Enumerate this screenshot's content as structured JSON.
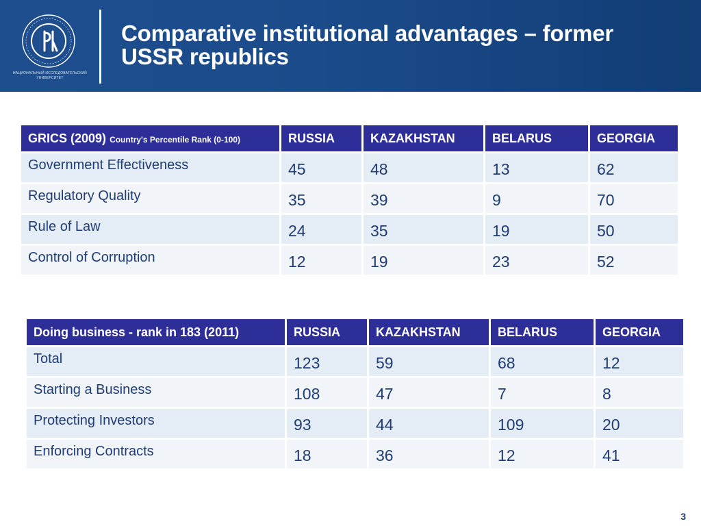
{
  "header": {
    "title_line1": "Comparative institutional advantages – former",
    "title_line2": "USSR republics",
    "logo_subtitle": "НАЦИОНАЛЬНЫЙ ИССЛЕДОВАТЕЛЬСКИЙ УНИВЕРСИТЕТ"
  },
  "table1": {
    "header_main": "GRICS (2009)",
    "header_sub": "Country's Percentile Rank (0-100)",
    "columns": [
      "RUSSIA",
      "KAZAKHSTAN",
      "BELARUS",
      "GEORGIA"
    ],
    "rows": [
      {
        "label": "Government Effectiveness",
        "values": [
          "45",
          "48",
          "13",
          "62"
        ]
      },
      {
        "label": "Regulatory Quality",
        "values": [
          "35",
          "39",
          "9",
          "70"
        ]
      },
      {
        "label": "Rule of Law",
        "values": [
          "24",
          "35",
          "19",
          "50"
        ]
      },
      {
        "label": "Control of Corruption",
        "values": [
          "12",
          "19",
          "23",
          "52"
        ]
      }
    ]
  },
  "table2": {
    "header_main": "Doing business -  rank in 183 (2011)",
    "columns": [
      "RUSSIA",
      "KAZAKHSTAN",
      "BELARUS",
      "GEORGIA"
    ],
    "rows": [
      {
        "label": "Total",
        "values": [
          "123",
          "59",
          "68",
          "12"
        ]
      },
      {
        "label": "Starting a Business",
        "values": [
          "108",
          "47",
          "7",
          "8"
        ]
      },
      {
        "label": "Protecting Investors",
        "values": [
          "93",
          "44",
          "109",
          "20"
        ]
      },
      {
        "label": "Enforcing Contracts",
        "values": [
          "18",
          "36",
          "12",
          "41"
        ]
      }
    ]
  },
  "footer": {
    "page_number": "3"
  },
  "colors": {
    "header_bg": "#1f4e8f",
    "table_header": "#2e2e99",
    "text": "#1f3c75",
    "row_light": "#e4ecf5",
    "row_lighter": "#f1f5fa"
  }
}
